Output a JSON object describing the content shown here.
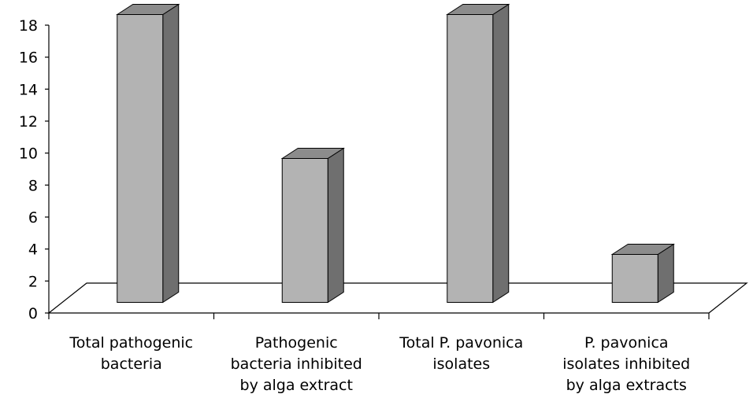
{
  "chart_data": {
    "type": "bar",
    "style": "3d-column",
    "categories": [
      [
        "Total pathogenic",
        "bacteria"
      ],
      [
        "Pathogenic",
        "bacteria inhibited",
        "by alga extract"
      ],
      [
        "Total P. pavonica",
        "isolates"
      ],
      [
        "P. pavonica",
        "isolates inhibited",
        "by alga extracts"
      ]
    ],
    "values": [
      18,
      9,
      18,
      3
    ],
    "ylim": [
      0,
      18
    ],
    "yticks": [
      0,
      2,
      4,
      6,
      8,
      10,
      12,
      14,
      16,
      18
    ],
    "grid": false,
    "legend": "none",
    "colors": {
      "bar_front": "#b3b3b3",
      "bar_top": "#8c8c8c",
      "bar_side": "#6f6f6f",
      "bar_edge": "#000000",
      "floor": "#ffffff",
      "axis": "#000000"
    }
  }
}
